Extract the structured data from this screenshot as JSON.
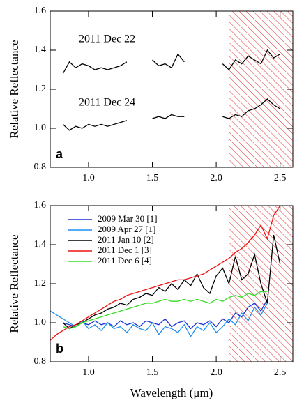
{
  "chart_data": [
    {
      "type": "line",
      "label": "a",
      "ylabel": "Relative Reflectance",
      "annotations": [
        "2011 Dec 22",
        "2011 Dec 24"
      ],
      "x": [
        0.8,
        0.85,
        0.9,
        0.95,
        1.0,
        1.05,
        1.1,
        1.15,
        1.2,
        1.25,
        1.3,
        1.35,
        1.4,
        1.45,
        1.5,
        1.55,
        1.6,
        1.65,
        1.7,
        1.75,
        1.8,
        1.85,
        1.9,
        1.95,
        2.0,
        2.05,
        2.1,
        2.15,
        2.2,
        2.25,
        2.3,
        2.35,
        2.4,
        2.45,
        2.5
      ],
      "series": [
        {
          "color": "#000000",
          "values": [
            1.28,
            1.34,
            1.31,
            1.33,
            1.32,
            1.3,
            1.31,
            1.3,
            1.31,
            1.32,
            1.34,
            null,
            null,
            null,
            1.35,
            1.32,
            1.33,
            1.31,
            1.38,
            1.34,
            null,
            null,
            null,
            null,
            null,
            1.33,
            1.3,
            1.35,
            1.33,
            1.37,
            1.35,
            1.33,
            1.4,
            1.36,
            1.38
          ]
        },
        {
          "color": "#000000",
          "values": [
            1.02,
            0.99,
            1.01,
            1.0,
            1.02,
            1.01,
            1.02,
            1.01,
            1.02,
            1.03,
            1.04,
            null,
            null,
            null,
            1.05,
            1.06,
            1.05,
            1.07,
            1.06,
            1.06,
            null,
            null,
            null,
            null,
            null,
            1.06,
            1.05,
            1.07,
            1.06,
            1.09,
            1.1,
            1.12,
            1.15,
            1.12,
            1.1
          ]
        }
      ],
      "xlim": [
        0.7,
        2.6
      ],
      "ylim": [
        0.8,
        1.6
      ],
      "xticks": [
        {
          "value": 1,
          "label": "1.0"
        },
        1.5,
        {
          "value": 2,
          "label": "2.0"
        },
        2.5
      ],
      "yticks": [
        0.8,
        {
          "value": 1,
          "label": "1.0"
        },
        1.2,
        1.4,
        1.6
      ],
      "hatch_start": 2.1,
      "hatch_color": "#e03030"
    },
    {
      "type": "line",
      "label": "b",
      "ylabel": "Relative Reflectance",
      "xlabel": "Wavelength (μm)",
      "legend": "upper left",
      "x": [
        0.7,
        0.75,
        0.8,
        0.85,
        0.9,
        0.95,
        1.0,
        1.05,
        1.1,
        1.15,
        1.2,
        1.25,
        1.3,
        1.35,
        1.4,
        1.45,
        1.5,
        1.55,
        1.6,
        1.65,
        1.7,
        1.75,
        1.8,
        1.85,
        1.9,
        1.95,
        2.0,
        2.05,
        2.1,
        2.15,
        2.2,
        2.25,
        2.3,
        2.35,
        2.4,
        2.45,
        2.5
      ],
      "series": [
        {
          "name": "2009 Mar 30 [1]",
          "color": "#1a2fd6",
          "values": [
            null,
            null,
            1.0,
            0.99,
            0.98,
            1.0,
            0.99,
            1.01,
            0.99,
            1.0,
            0.98,
            1.01,
            0.99,
            1.0,
            0.98,
            1.01,
            1.0,
            0.99,
            1.02,
            0.98,
            1.0,
            1.01,
            0.97,
            1.0,
            0.99,
            1.01,
            0.98,
            1.02,
            1.0,
            1.05,
            1.03,
            1.08,
            1.1,
            1.06,
            1.12,
            null,
            null
          ]
        },
        {
          "name": "2009 Apr 27 [1]",
          "color": "#1e8ff0",
          "values": [
            1.06,
            1.04,
            1.02,
            1.0,
            0.98,
            1.01,
            0.97,
            0.99,
            0.96,
            1.0,
            0.97,
            0.98,
            0.95,
            0.99,
            0.97,
            0.96,
            1.0,
            0.94,
            0.98,
            0.97,
            0.95,
            0.99,
            0.93,
            0.98,
            0.96,
            1.0,
            0.95,
            0.98,
            1.02,
            0.99,
            1.05,
            1.01,
            1.08,
            1.04,
            1.1,
            null,
            null
          ]
        },
        {
          "name": "2011 Jan 10 [2]",
          "color": "#000000",
          "values": [
            null,
            null,
            1.0,
            0.97,
            0.99,
            1.0,
            1.02,
            1.04,
            1.05,
            1.07,
            1.08,
            1.1,
            1.09,
            1.12,
            1.13,
            1.15,
            1.14,
            1.18,
            1.16,
            1.2,
            1.17,
            1.22,
            1.19,
            1.25,
            1.18,
            1.15,
            1.24,
            1.28,
            1.2,
            1.34,
            1.22,
            1.25,
            1.35,
            1.2,
            1.1,
            1.45,
            1.3
          ]
        },
        {
          "name": "2011 Dec 1 [3]",
          "color": "#ee1111",
          "values": [
            0.91,
            0.94,
            0.96,
            0.98,
            0.99,
            1.01,
            1.03,
            1.05,
            1.07,
            1.09,
            1.11,
            1.12,
            1.14,
            1.15,
            1.16,
            1.17,
            1.18,
            1.19,
            1.2,
            1.21,
            1.22,
            1.22,
            1.23,
            1.24,
            1.25,
            1.27,
            1.29,
            1.31,
            1.33,
            1.36,
            1.38,
            1.41,
            1.45,
            1.5,
            1.43,
            1.55,
            1.6
          ]
        },
        {
          "name": "2011 Dec 6 [4]",
          "color": "#33dd22",
          "values": [
            null,
            null,
            0.98,
            0.97,
            0.98,
            1.0,
            1.01,
            1.02,
            1.03,
            1.04,
            1.05,
            1.06,
            1.07,
            1.08,
            1.09,
            1.1,
            1.1,
            1.11,
            1.12,
            1.11,
            1.11,
            1.12,
            1.11,
            1.12,
            1.11,
            1.1,
            1.12,
            1.11,
            1.13,
            1.14,
            1.13,
            1.15,
            1.14,
            1.16,
            1.16,
            null,
            null
          ]
        }
      ],
      "xlim": [
        0.7,
        2.6
      ],
      "ylim": [
        0.8,
        1.6
      ],
      "xticks": [
        {
          "value": 1,
          "label": "1.0"
        },
        1.5,
        {
          "value": 2,
          "label": "2.0"
        },
        2.5
      ],
      "yticks": [
        0.8,
        {
          "value": 1,
          "label": "1.0"
        },
        1.2,
        1.4,
        1.6
      ],
      "hatch_start": 2.1,
      "hatch_color": "#e03030"
    }
  ]
}
